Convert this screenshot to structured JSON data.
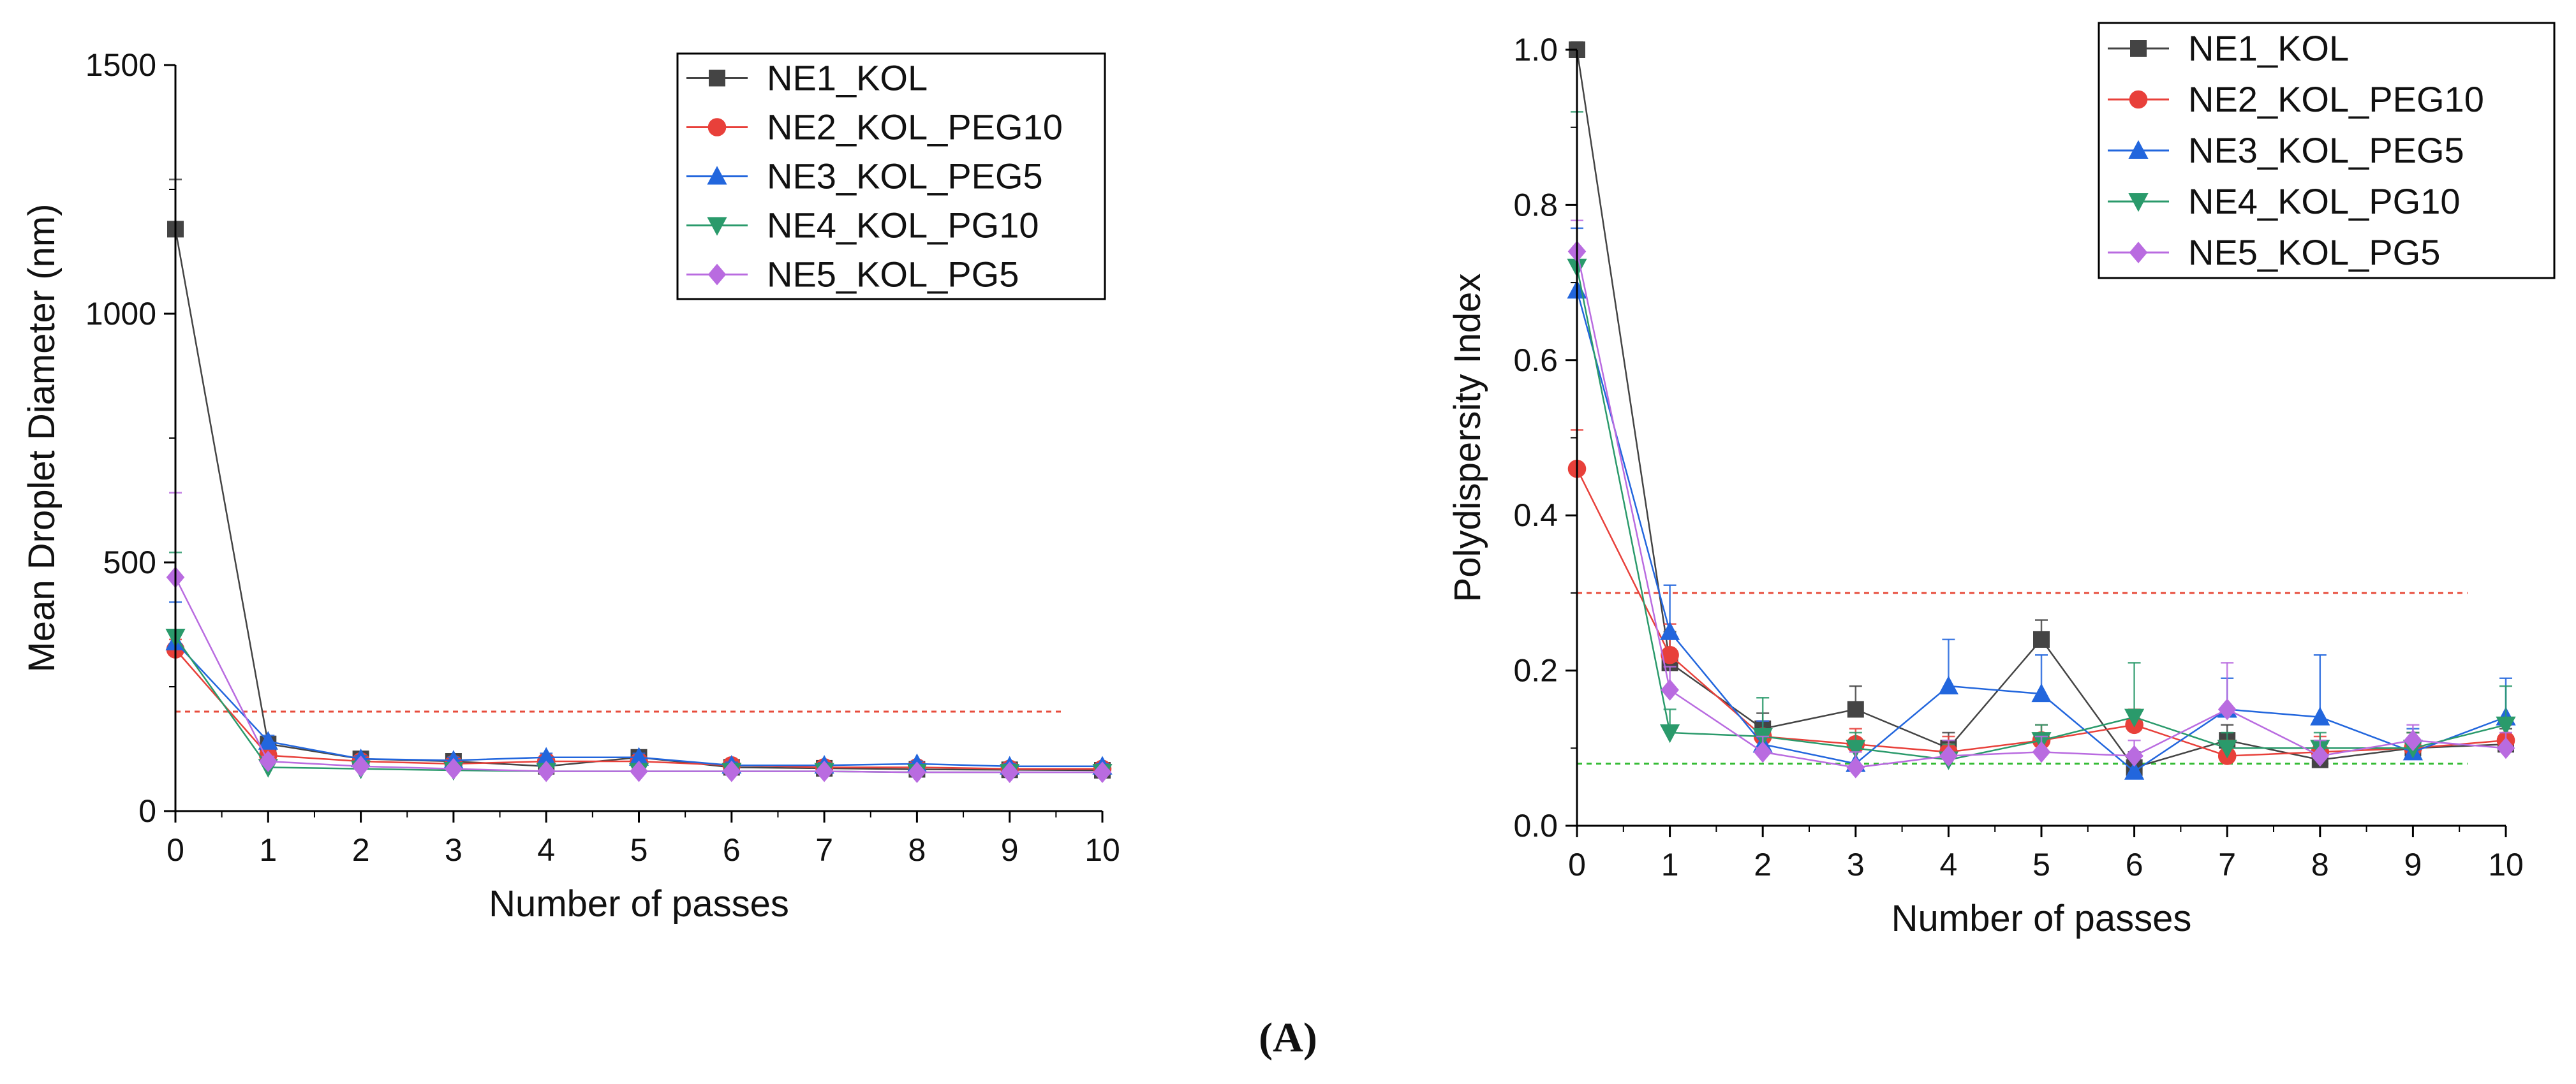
{
  "figure": {
    "panel_label_open": "(",
    "panel_label": "A",
    "panel_label_close": ")"
  },
  "chart_data": [
    {
      "type": "line",
      "xlabel": "Number of passes",
      "ylabel": "Mean Droplet Diameter (nm)",
      "x": [
        0,
        1,
        2,
        3,
        4,
        5,
        6,
        7,
        8,
        9,
        10
      ],
      "xlim": [
        0,
        10
      ],
      "ylim": [
        0,
        1500
      ],
      "xticks": [
        0,
        1,
        2,
        3,
        4,
        5,
        6,
        7,
        8,
        9,
        10
      ],
      "yticks": [
        0,
        500,
        1000,
        1500
      ],
      "legend_position": "top-right",
      "reference_lines": [
        {
          "y": 200,
          "color": "#e74c3c",
          "style": "dotted"
        }
      ],
      "series": [
        {
          "name": "NE1_KOL",
          "marker": "square",
          "color": "#444444",
          "values": [
            1170,
            135,
            105,
            100,
            90,
            108,
            88,
            86,
            84,
            83,
            82
          ],
          "errors": [
            100,
            10,
            6,
            5,
            5,
            14,
            5,
            4,
            4,
            4,
            4
          ]
        },
        {
          "name": "NE2_KOL_PEG10",
          "marker": "circle",
          "color": "#e8403a",
          "values": [
            325,
            112,
            100,
            95,
            100,
            100,
            92,
            88,
            88,
            85,
            85
          ],
          "errors": [
            20,
            8,
            5,
            5,
            5,
            8,
            5,
            4,
            4,
            4,
            4
          ]
        },
        {
          "name": "NE3_KOL_PEG5",
          "marker": "triangle-up",
          "color": "#2266dd",
          "values": [
            340,
            140,
            105,
            102,
            108,
            108,
            92,
            92,
            95,
            90,
            90
          ],
          "errors": [
            80,
            12,
            6,
            6,
            8,
            8,
            6,
            5,
            5,
            5,
            5
          ]
        },
        {
          "name": "NE4_KOL_PG10",
          "marker": "triangle-down",
          "color": "#2a9a6b",
          "values": [
            350,
            88,
            85,
            82,
            80,
            80,
            80,
            80,
            78,
            78,
            78
          ],
          "errors": [
            170,
            8,
            5,
            5,
            5,
            5,
            5,
            4,
            4,
            4,
            4
          ]
        },
        {
          "name": "NE5_KOL_PG5",
          "marker": "diamond",
          "color": "#b96be0",
          "values": [
            470,
            100,
            90,
            85,
            80,
            80,
            80,
            80,
            78,
            78,
            78
          ],
          "errors": [
            170,
            10,
            6,
            5,
            5,
            5,
            5,
            4,
            4,
            4,
            4
          ]
        }
      ]
    },
    {
      "type": "line",
      "xlabel": "Number of passes",
      "ylabel": "Polydispersity Index",
      "x": [
        0,
        1,
        2,
        3,
        4,
        5,
        6,
        7,
        8,
        9,
        10
      ],
      "xlim": [
        0,
        10
      ],
      "ylim": [
        0,
        1.0
      ],
      "xticks": [
        0,
        1,
        2,
        3,
        4,
        5,
        6,
        7,
        8,
        9,
        10
      ],
      "yticks": [
        0.0,
        0.2,
        0.4,
        0.6,
        0.8,
        1.0
      ],
      "legend_position": "top-right",
      "reference_lines": [
        {
          "y": 0.3,
          "color": "#e74c3c",
          "style": "dotted"
        },
        {
          "y": 0.08,
          "color": "#33bb33",
          "style": "dotted"
        }
      ],
      "series": [
        {
          "name": "NE1_KOL",
          "marker": "square",
          "color": "#444444",
          "values": [
            1.0,
            0.21,
            0.125,
            0.15,
            0.1,
            0.24,
            0.075,
            0.11,
            0.085,
            0.1,
            0.105
          ],
          "errors": [
            0.01,
            0.04,
            0.02,
            0.03,
            0.02,
            0.025,
            0.02,
            0.02,
            0.02,
            0.02,
            0.02
          ]
        },
        {
          "name": "NE2_KOL_PEG10",
          "marker": "circle",
          "color": "#e8403a",
          "values": [
            0.46,
            0.22,
            0.115,
            0.105,
            0.095,
            0.11,
            0.13,
            0.09,
            0.095,
            0.1,
            0.11
          ],
          "errors": [
            0.05,
            0.04,
            0.02,
            0.02,
            0.02,
            0.02,
            0.02,
            0.02,
            0.02,
            0.02,
            0.02
          ]
        },
        {
          "name": "NE3_KOL_PEG5",
          "marker": "triangle-up",
          "color": "#2266dd",
          "values": [
            0.69,
            0.25,
            0.105,
            0.08,
            0.18,
            0.17,
            0.07,
            0.15,
            0.14,
            0.095,
            0.14
          ],
          "errors": [
            0.08,
            0.06,
            0.03,
            0.02,
            0.06,
            0.05,
            0.02,
            0.04,
            0.08,
            0.03,
            0.05
          ]
        },
        {
          "name": "NE4_KOL_PG10",
          "marker": "triangle-down",
          "color": "#2a9a6b",
          "values": [
            0.72,
            0.12,
            0.115,
            0.1,
            0.085,
            0.11,
            0.14,
            0.1,
            0.1,
            0.1,
            0.13
          ],
          "errors": [
            0.2,
            0.03,
            0.05,
            0.02,
            0.02,
            0.02,
            0.07,
            0.02,
            0.02,
            0.02,
            0.05
          ]
        },
        {
          "name": "NE5_KOL_PG5",
          "marker": "diamond",
          "color": "#b96be0",
          "values": [
            0.74,
            0.175,
            0.095,
            0.075,
            0.09,
            0.095,
            0.09,
            0.15,
            0.09,
            0.11,
            0.1
          ],
          "errors": [
            0.04,
            0.03,
            0.02,
            0.02,
            0.02,
            0.02,
            0.02,
            0.06,
            0.02,
            0.02,
            0.02
          ]
        }
      ]
    }
  ]
}
